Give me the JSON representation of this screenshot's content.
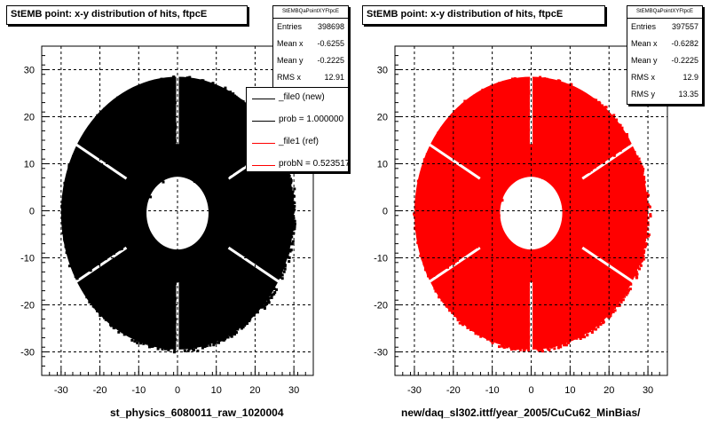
{
  "chart_data": [
    {
      "type": "scatter",
      "title": "StEMB point: x-y distribution of hits, ftpcE",
      "xlabel": "st_physics_6080011_raw_1020004",
      "ylabel": "",
      "xlim": [
        -35,
        35
      ],
      "ylim": [
        -35,
        35
      ],
      "x_ticks": [
        -30,
        -20,
        -10,
        0,
        10,
        20,
        30
      ],
      "y_ticks": [
        -30,
        -20,
        -10,
        0,
        10,
        20,
        30
      ],
      "grid": true,
      "color": "#000000",
      "distribution": {
        "x_center": 0,
        "y_center": -0.5,
        "x_radius": 30,
        "y_radius": 29,
        "inner_radius": 8,
        "sector_gaps_deg": [
          90,
          30,
          -30,
          270,
          210,
          150
        ]
      },
      "stats": {
        "header": "StEMBQaPointXYFtpcE",
        "rows": [
          {
            "label": "Entries",
            "value": "398698"
          },
          {
            "label": "Mean x",
            "value": "-0.6255"
          },
          {
            "label": "Mean y",
            "value": "-0.2225"
          },
          {
            "label": "RMS x",
            "value": "12.91"
          }
        ]
      },
      "legend": {
        "placement": "top-right",
        "entries": [
          {
            "label": "_file0 (new)",
            "color": "#000000"
          },
          {
            "label": "prob = 1.000000",
            "color": "#000000"
          },
          {
            "label": "_file1 (ref)",
            "color": "#ff0000"
          },
          {
            "label": "probN = 0.523517",
            "color": "#ff0000"
          }
        ]
      }
    },
    {
      "type": "scatter",
      "title": "StEMB point: x-y distribution of hits, ftpcE",
      "xlabel": "new/daq_sl302.ittf/year_2005/CuCu62_MinBias/",
      "ylabel": "",
      "xlim": [
        -35,
        35
      ],
      "ylim": [
        -35,
        35
      ],
      "x_ticks": [
        -30,
        -20,
        -10,
        0,
        10,
        20,
        30
      ],
      "y_ticks": [
        -30,
        -20,
        -10,
        0,
        10,
        20,
        30
      ],
      "grid": true,
      "color": "#ff0000",
      "distribution": {
        "x_center": 0,
        "y_center": -0.5,
        "x_radius": 30,
        "y_radius": 29,
        "inner_radius": 8,
        "sector_gaps_deg": [
          90,
          30,
          -30,
          270,
          210,
          150
        ]
      },
      "stats": {
        "header": "StEMBQaPointXYFtpcE",
        "rows": [
          {
            "label": "Entries",
            "value": "397557"
          },
          {
            "label": "Mean x",
            "value": "-0.6282"
          },
          {
            "label": "Mean y",
            "value": "-0.2225"
          },
          {
            "label": "RMS x",
            "value": "12.9"
          },
          {
            "label": "RMS y",
            "value": "13.35"
          }
        ]
      }
    }
  ]
}
